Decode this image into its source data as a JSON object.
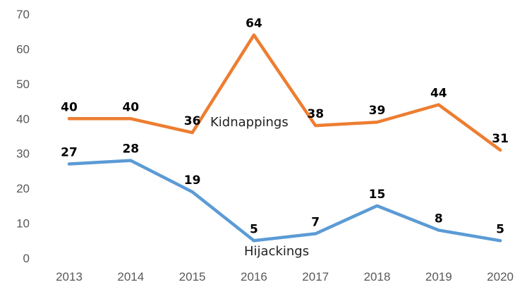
{
  "chart_data": {
    "type": "line",
    "title": "",
    "xlabel": "",
    "ylabel": "",
    "categories": [
      "2013",
      "2014",
      "2015",
      "2016",
      "2017",
      "2018",
      "2019",
      "2020"
    ],
    "ylim": [
      0,
      70
    ],
    "yticks": [
      "0",
      "10",
      "20",
      "30",
      "40",
      "50",
      "60",
      "70"
    ],
    "grid": false,
    "legend": "none",
    "series": [
      {
        "name": "Kidnappings",
        "values": [
          40,
          40,
          36,
          64,
          38,
          39,
          44,
          31
        ],
        "color": "#ED7D31"
      },
      {
        "name": "Hijackings",
        "values": [
          27,
          28,
          19,
          5,
          7,
          15,
          8,
          5
        ],
        "color": "#5B9BD5"
      }
    ]
  }
}
